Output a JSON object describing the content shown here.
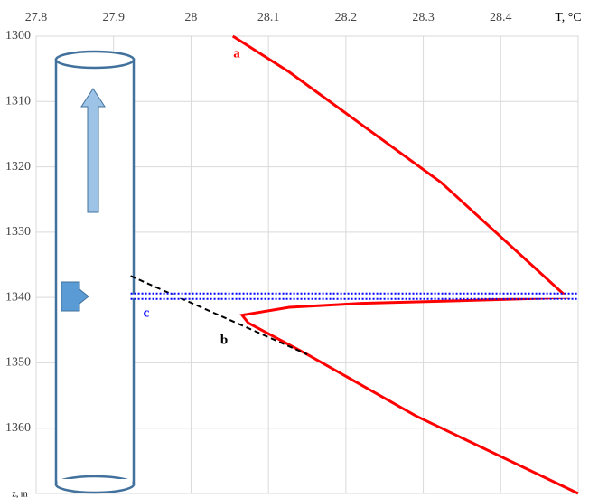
{
  "chart_data": {
    "type": "line",
    "x_label": "T, °C",
    "y_label": "z, m",
    "xlim": [
      27.8,
      28.5
    ],
    "xticks": [
      27.8,
      27.9,
      28,
      28.1,
      28.2,
      28.3,
      28.4
    ],
    "ylim": [
      1300,
      1370
    ],
    "yticks": [
      1300,
      1310,
      1320,
      1330,
      1340,
      1350,
      1360
    ],
    "grid": true,
    "series": [
      {
        "name": "a",
        "color": "#ff0000",
        "style": "solid",
        "x": [
          28.054,
          28.127,
          28.323,
          28.486,
          28.407,
          28.22,
          28.127,
          28.066,
          28.074,
          28.15,
          28.29,
          28.5
        ],
        "y": [
          1300,
          1305.5,
          1322.4,
          1340,
          1340.3,
          1340.9,
          1341.5,
          1342.7,
          1343.9,
          1348.7,
          1358.1,
          1370
        ]
      },
      {
        "name": "b",
        "color": "#000000",
        "style": "dashed",
        "x": [
          27.922,
          28.15
        ],
        "y": [
          1336.7,
          1348.7
        ]
      },
      {
        "name": "c",
        "color": "#0000ff",
        "style": "dotted",
        "x": [
          27.922,
          28.5
        ],
        "y": [
          1339.8,
          1339.8
        ]
      }
    ]
  }
}
